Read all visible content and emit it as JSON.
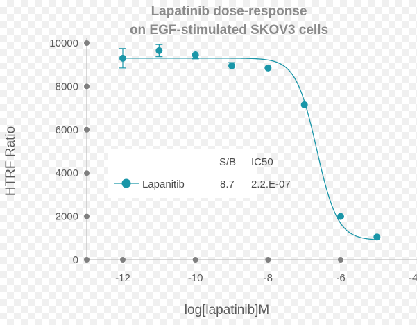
{
  "chart_data": {
    "type": "scatter",
    "title": [
      "Lapatinib dose-response",
      "on EGF-stimulated SKOV3 cells"
    ],
    "xlabel": "log[lapatinib]M",
    "ylabel": "HTRF Ratio",
    "xlim": [
      -12.5,
      -4
    ],
    "ylim": [
      0,
      10000
    ],
    "x_ticks": [
      -12,
      -10,
      -8,
      -6,
      -4
    ],
    "x_tick_labels": [
      "-12",
      "-10",
      "-8",
      "-6",
      "-4"
    ],
    "y_ticks": [
      0,
      2000,
      4000,
      6000,
      8000,
      10000
    ],
    "y_tick_labels": [
      "0",
      "2000",
      "4000",
      "6000",
      "8000",
      "10000"
    ],
    "grid": false,
    "colors": {
      "series": "#1a96a8",
      "axis": "#bfbfbf",
      "axis_dot": "#7f7f7f"
    },
    "series": [
      {
        "name": "Lapanitib",
        "points": [
          {
            "x": -12.0,
            "y": 9300,
            "err": 450
          },
          {
            "x": -11.0,
            "y": 9650,
            "err": 280
          },
          {
            "x": -10.0,
            "y": 9450,
            "err": 180
          },
          {
            "x": -9.0,
            "y": 8950,
            "err": 150
          },
          {
            "x": -8.0,
            "y": 8850,
            "err": 0
          },
          {
            "x": -7.0,
            "y": 7150,
            "err": 0
          },
          {
            "x": -6.0,
            "y": 2000,
            "err": 0
          },
          {
            "x": -5.0,
            "y": 1050,
            "err": 0
          }
        ],
        "fit": {
          "top": 9300,
          "bottom": 900,
          "logIC50": -6.66,
          "hill": 1.5
        }
      }
    ],
    "legend": {
      "position": "center-left",
      "headers": [
        "S/B",
        "IC50"
      ],
      "rows": [
        {
          "name": "Lapanitib",
          "sb": "8.7",
          "ic50": "2.2.E-07"
        }
      ]
    }
  }
}
